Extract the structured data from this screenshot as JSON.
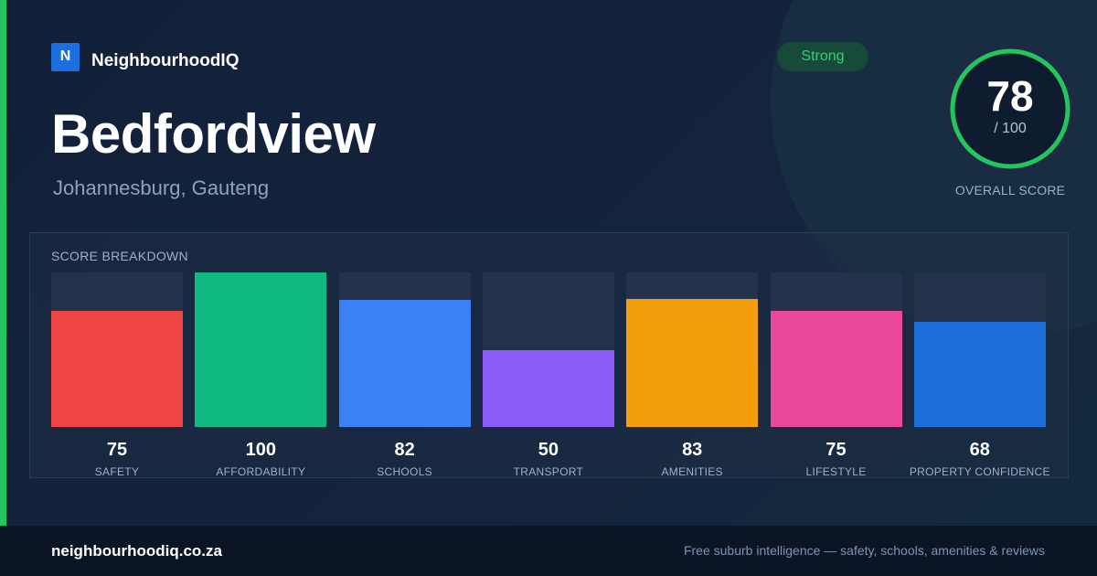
{
  "brand": {
    "logo_letter": "N",
    "name": "NeighbourhoodIQ",
    "color": "#1d6fe0"
  },
  "suburb": {
    "name": "Bedfordview",
    "location": "Johannesburg, Gauteng"
  },
  "badge": {
    "text": "Strong",
    "color": "#34d07a"
  },
  "overall": {
    "score": "78",
    "max": "/ 100",
    "label": "OVERALL SCORE",
    "ring_color": "#22c55e",
    "score_value": 78
  },
  "breakdown_title": "SCORE BREAKDOWN",
  "chart_data": {
    "type": "bar",
    "categories": [
      "SAFETY",
      "AFFORDABILITY",
      "SCHOOLS",
      "TRANSPORT",
      "AMENITIES",
      "LIFESTYLE",
      "PROPERTY CONFIDENCE"
    ],
    "values": [
      75,
      100,
      82,
      50,
      83,
      75,
      68
    ],
    "colors": [
      "#ef4444",
      "#10b981",
      "#3b82f6",
      "#8b5cf6",
      "#f59e0b",
      "#ec4899",
      "#1d6fd9"
    ],
    "ylim": [
      0,
      100
    ]
  },
  "footer": {
    "domain": "neighbourhoodiq.co.za",
    "tagline": "Free suburb intelligence — safety, schools, amenities & reviews"
  }
}
